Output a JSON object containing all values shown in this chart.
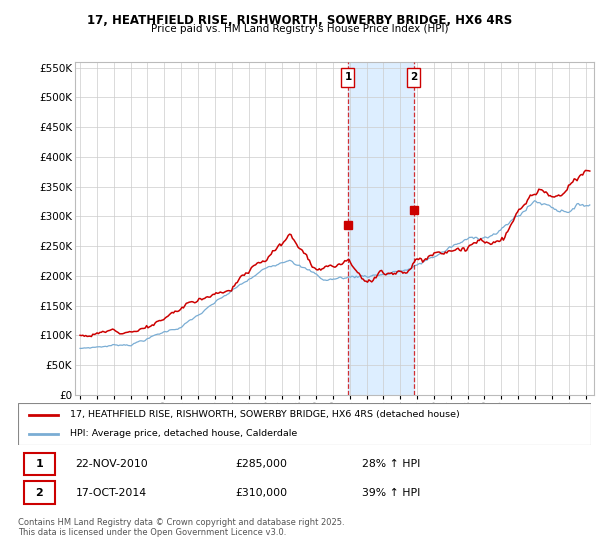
{
  "title1": "17, HEATHFIELD RISE, RISHWORTH, SOWERBY BRIDGE, HX6 4RS",
  "title2": "Price paid vs. HM Land Registry's House Price Index (HPI)",
  "ylim": [
    0,
    560000
  ],
  "yticks": [
    0,
    50000,
    100000,
    150000,
    200000,
    250000,
    300000,
    350000,
    400000,
    450000,
    500000,
    550000
  ],
  "xlim_start": 1994.7,
  "xlim_end": 2025.5,
  "sale1_date": 2010.9,
  "sale1_price": 285000,
  "sale2_date": 2014.8,
  "sale2_price": 310000,
  "legend_line1": "17, HEATHFIELD RISE, RISHWORTH, SOWERBY BRIDGE, HX6 4RS (detached house)",
  "legend_line2": "HPI: Average price, detached house, Calderdale",
  "footer": "Contains HM Land Registry data © Crown copyright and database right 2025.\nThis data is licensed under the Open Government Licence v3.0.",
  "red_color": "#cc0000",
  "blue_color": "#7aadd4",
  "shade_color": "#ddeeff",
  "grid_color": "#cccccc",
  "red_seed": 12,
  "blue_seed": 7
}
